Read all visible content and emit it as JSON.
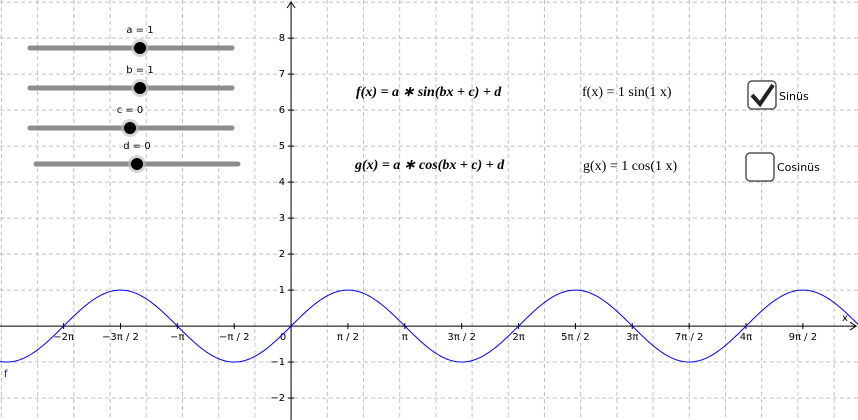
{
  "sliders": [
    {
      "label": "a = 1",
      "value": 1
    },
    {
      "label": "b = 1",
      "value": 1
    },
    {
      "label": "c = 0",
      "value": 0
    },
    {
      "label": "d = 0",
      "value": 0
    }
  ],
  "functions": [
    {
      "formula": "f(x) = a ∗ sin(bx + c) + d",
      "expression": "f(x) = 1  sin(1 x)",
      "checkbox": "Sinüs",
      "checked": true
    },
    {
      "formula": "g(x) = a ∗ cos(bx + c) + d",
      "expression": "g(x) = 1  cos(1 x)",
      "checkbox": "Cosinüs",
      "checked": false
    }
  ],
  "graph": {
    "x_label": "x",
    "curve_label": "f",
    "curve_color": "#0000ff",
    "xlim": [
      -8.04,
      15.66
    ],
    "ylim": [
      -2.61,
      9.06
    ],
    "xticks": [
      {
        "value": -6.2832,
        "label": "−2π"
      },
      {
        "value": -4.7124,
        "label": "−3π / 2"
      },
      {
        "value": -3.1416,
        "label": "−π"
      },
      {
        "value": -1.5708,
        "label": "−π / 2"
      },
      0,
      {
        "value": 1.5708,
        "label": "π / 2"
      },
      {
        "value": 3.1416,
        "label": "π"
      },
      {
        "value": 4.7124,
        "label": "3π / 2"
      },
      {
        "value": 6.2832,
        "label": "2π"
      },
      {
        "value": 7.854,
        "label": "5π / 2"
      },
      {
        "value": 9.4248,
        "label": "3π"
      },
      {
        "value": 10.9956,
        "label": "7π / 2"
      },
      {
        "value": 12.5664,
        "label": "4π"
      },
      {
        "value": 14.1372,
        "label": "9π / 2"
      }
    ],
    "yticks": [
      {
        "value": -2,
        "label": "−2"
      },
      {
        "value": -1,
        "label": "−1"
      },
      1,
      2,
      3,
      4,
      5,
      6,
      7,
      8
    ]
  }
}
